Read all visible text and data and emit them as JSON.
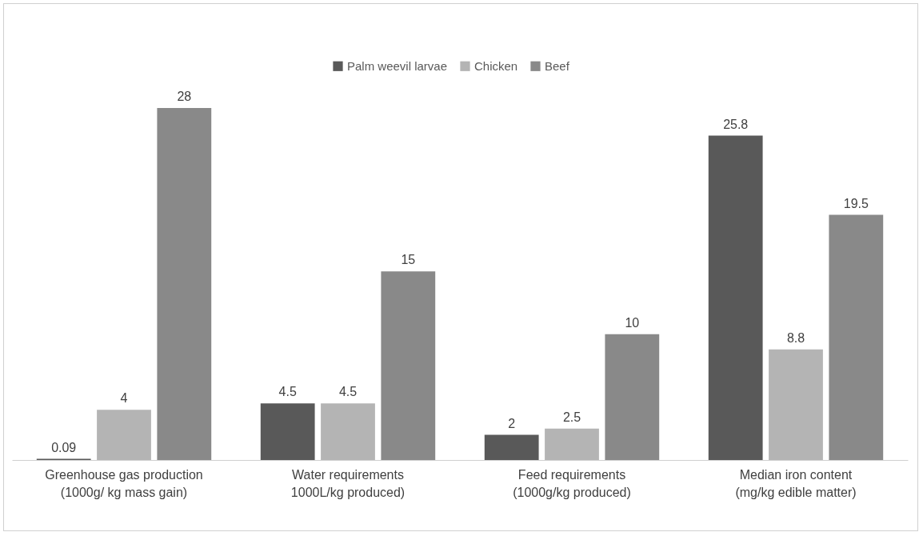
{
  "chart_data": {
    "type": "bar",
    "categories": [
      "Greenhouse gas production\n(1000g/ kg mass gain)",
      "Water requirements\n1000L/kg produced)",
      "Feed requirements\n(1000g/kg produced)",
      "Median iron content\n(mg/kg edible matter)"
    ],
    "series": [
      {
        "name": "Palm weevil larvae",
        "color": "#595959",
        "values": [
          0.09,
          4.5,
          2,
          25.8
        ]
      },
      {
        "name": "Chicken",
        "color": "#b4b4b4",
        "values": [
          4,
          4.5,
          2.5,
          8.8
        ]
      },
      {
        "name": "Beef",
        "color": "#898989",
        "values": [
          28,
          15,
          10,
          19.5
        ]
      }
    ],
    "data_labels": true,
    "legend": "top",
    "grid": false
  }
}
